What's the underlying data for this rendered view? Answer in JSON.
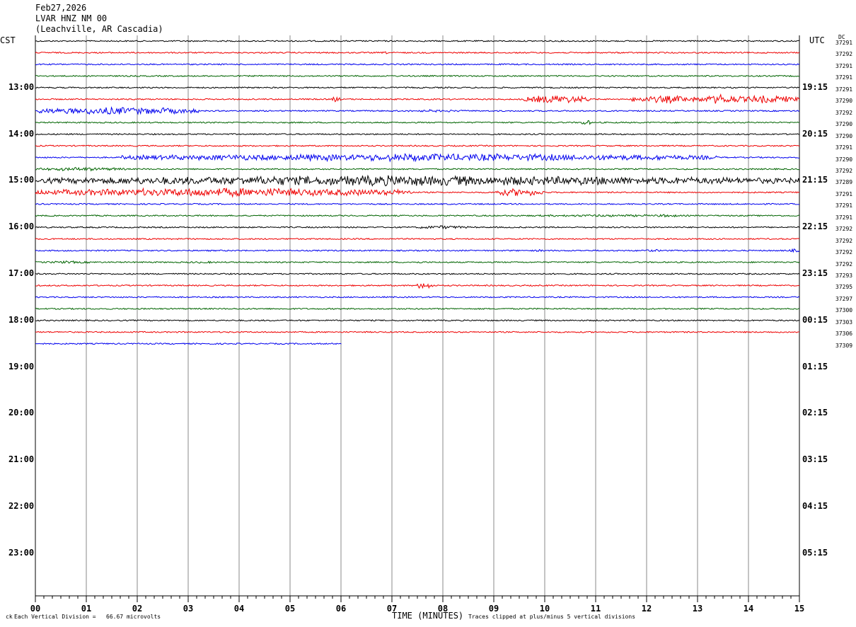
{
  "header": {
    "date": "Feb27,2026",
    "station": "LVAR HNZ NM 00",
    "location": "(Leachville, AR Cascadia)"
  },
  "left_zone": "CST",
  "right_zone": "UTC",
  "dc_label": "DC",
  "chart_data": {
    "type": "line",
    "title": "LVAR HNZ NM 00",
    "xlabel": "TIME (MINUTES)",
    "x_ticks": [
      "00",
      "01",
      "02",
      "03",
      "04",
      "05",
      "06",
      "07",
      "08",
      "09",
      "10",
      "11",
      "12",
      "13",
      "14",
      "15"
    ],
    "xlim": [
      0,
      15
    ],
    "left_hour_labels": [
      "13:00",
      "14:00",
      "15:00",
      "16:00",
      "17:00",
      "18:00",
      "19:00",
      "20:00",
      "21:00",
      "22:00",
      "23:00"
    ],
    "right_hour_labels": [
      "19:15",
      "20:15",
      "21:15",
      "22:15",
      "23:15",
      "00:15",
      "01:15",
      "02:15",
      "03:15",
      "04:15",
      "05:15"
    ],
    "trace_colors": [
      "#000000",
      "#ee0000",
      "#0000ee",
      "#006400"
    ],
    "trace_count": 27,
    "last_trace_end_minute": 6,
    "dc_offsets": [
      "37291",
      "37292",
      "37291",
      "37291",
      "37291",
      "37290",
      "37292",
      "37290",
      "37290",
      "37291",
      "37290",
      "37292",
      "37289",
      "37291",
      "37291",
      "37291",
      "37292",
      "37292",
      "37292",
      "37292",
      "37293",
      "37295",
      "37297",
      "37300",
      "37303",
      "37306",
      "37309"
    ],
    "activity": [
      [],
      [
        [
          6.8,
          0.2,
          2
        ]
      ],
      [],
      [],
      [],
      [
        [
          5.8,
          0.2,
          4
        ],
        [
          9.6,
          1.3,
          7
        ],
        [
          11.7,
          1.3,
          6
        ],
        [
          12.9,
          1.1,
          7
        ],
        [
          13.7,
          1.3,
          6
        ]
      ],
      [
        [
          0,
          3.2,
          6
        ],
        [
          7,
          1.6,
          2
        ]
      ],
      [
        [
          10.7,
          0.2,
          5
        ]
      ],
      [],
      [],
      [
        [
          1.7,
          11.7,
          6
        ],
        [
          15,
          0.2,
          2
        ]
      ],
      [
        [
          0,
          1.8,
          3
        ]
      ],
      [
        [
          0,
          15,
          8
        ]
      ],
      [
        [
          0,
          7.4,
          7
        ],
        [
          9,
          1,
          6
        ]
      ],
      [],
      [
        [
          9.5,
          3.5,
          2
        ],
        [
          12.2,
          0.4,
          3
        ]
      ],
      [
        [
          7.5,
          1,
          3
        ]
      ],
      [],
      [
        [
          9.8,
          0.2,
          2
        ],
        [
          11.8,
          0.6,
          2
        ],
        [
          14.8,
          0.2,
          3
        ]
      ],
      [
        [
          0,
          1.3,
          2
        ],
        [
          3,
          0.6,
          2
        ],
        [
          7.3,
          0.4,
          2
        ]
      ],
      [],
      [
        [
          7.5,
          0.3,
          6
        ]
      ],
      [],
      [],
      [],
      [],
      []
    ]
  },
  "footer": {
    "division_text": "Each Vertical Division =   66.67 microvolts",
    "clip_text": "Traces clipped at plus/minus 5 vertical divisions",
    "logo_mark": "ck"
  }
}
